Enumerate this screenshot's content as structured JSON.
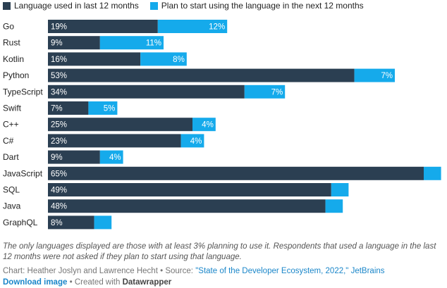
{
  "legend": {
    "used": "Language used in last 12 months",
    "plan": "Plan to start using the language in the next 12 months"
  },
  "colors": {
    "used": "#2b3f52",
    "plan": "#15aaeb"
  },
  "chart_data": {
    "type": "bar",
    "orientation": "horizontal",
    "stacked": true,
    "categories": [
      "Go",
      "Rust",
      "Kotlin",
      "Python",
      "TypeScript",
      "Swift",
      "C++",
      "C#",
      "Dart",
      "JavaScript",
      "SQL",
      "Java",
      "GraphQL"
    ],
    "series": [
      {
        "name": "Language used in last 12 months",
        "values": [
          19,
          9,
          16,
          53,
          34,
          7,
          25,
          23,
          9,
          65,
          49,
          48,
          8
        ]
      },
      {
        "name": "Plan to start using the language in the next 12 months",
        "values": [
          12,
          11,
          8,
          7,
          7,
          5,
          4,
          4,
          4,
          3,
          3,
          3,
          3
        ]
      }
    ],
    "value_labels": {
      "used": [
        "19%",
        "9%",
        "16%",
        "53%",
        "34%",
        "7%",
        "25%",
        "23%",
        "9%",
        "65%",
        "49%",
        "48%",
        "8%"
      ],
      "plan": [
        "12%",
        "11%",
        "8%",
        "7%",
        "7%",
        "5%",
        "4%",
        "4%",
        "4%",
        "",
        "",
        "",
        ""
      ]
    },
    "xlim": [
      0,
      68
    ],
    "grid": false,
    "legend_position": "top-left"
  },
  "footer": {
    "notes": "The only languages displayed are those with at least 3% planning to use it. Respondents that used a language in the last 12 months were not asked if they plan to start using that language.",
    "chart_credit": "Chart: Heather Joslyn and Lawrence Hecht",
    "separator": "•",
    "source_label": "Source:",
    "source_link": "\"State of the Developer Ecosystem, 2022,\" JetBrains",
    "download": "Download image",
    "created_with": "Created with",
    "datawrapper": "Datawrapper"
  }
}
